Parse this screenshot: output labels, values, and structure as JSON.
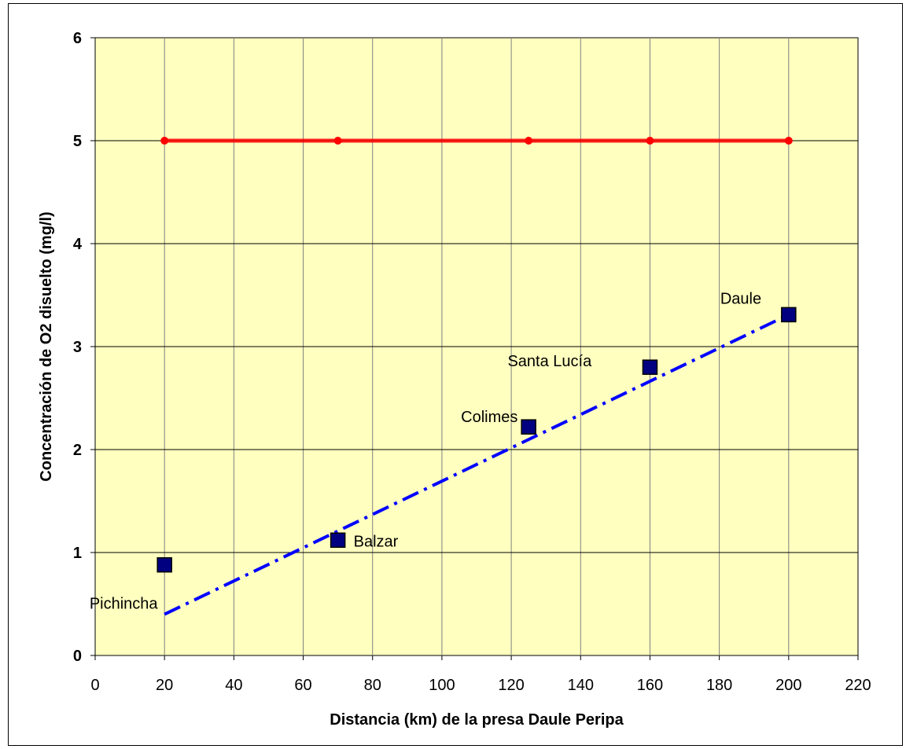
{
  "chart_data": {
    "type": "scatter",
    "xlabel": "Distancia (km) de la presa Daule Peripa",
    "ylabel": "Concentración de O2 disuelto (mg/l)",
    "xlim": [
      0,
      220
    ],
    "ylim": [
      0,
      6
    ],
    "x_ticks": [
      0,
      20,
      40,
      60,
      80,
      100,
      120,
      140,
      160,
      180,
      200,
      220
    ],
    "y_ticks": [
      0,
      1,
      2,
      3,
      4,
      5,
      6
    ],
    "grid": true,
    "plot_background": "#ffffc0",
    "series": [
      {
        "kind": "line-markers",
        "color": "#ff0000",
        "x": [
          20,
          70,
          125,
          160,
          200
        ],
        "y": [
          5,
          5,
          5,
          5,
          5
        ]
      },
      {
        "kind": "square-markers",
        "color": "#000080",
        "x": [
          20,
          70,
          125,
          160,
          200
        ],
        "y": [
          0.88,
          1.12,
          2.22,
          2.8,
          3.31
        ],
        "labels": [
          "Pichincha",
          "Balzar",
          "Colimes",
          "Santa Lucía",
          "Daule"
        ]
      },
      {
        "kind": "dash-dot-trend",
        "color": "#0000ff",
        "x": [
          20,
          200
        ],
        "y": [
          0.4,
          3.31
        ]
      }
    ]
  }
}
